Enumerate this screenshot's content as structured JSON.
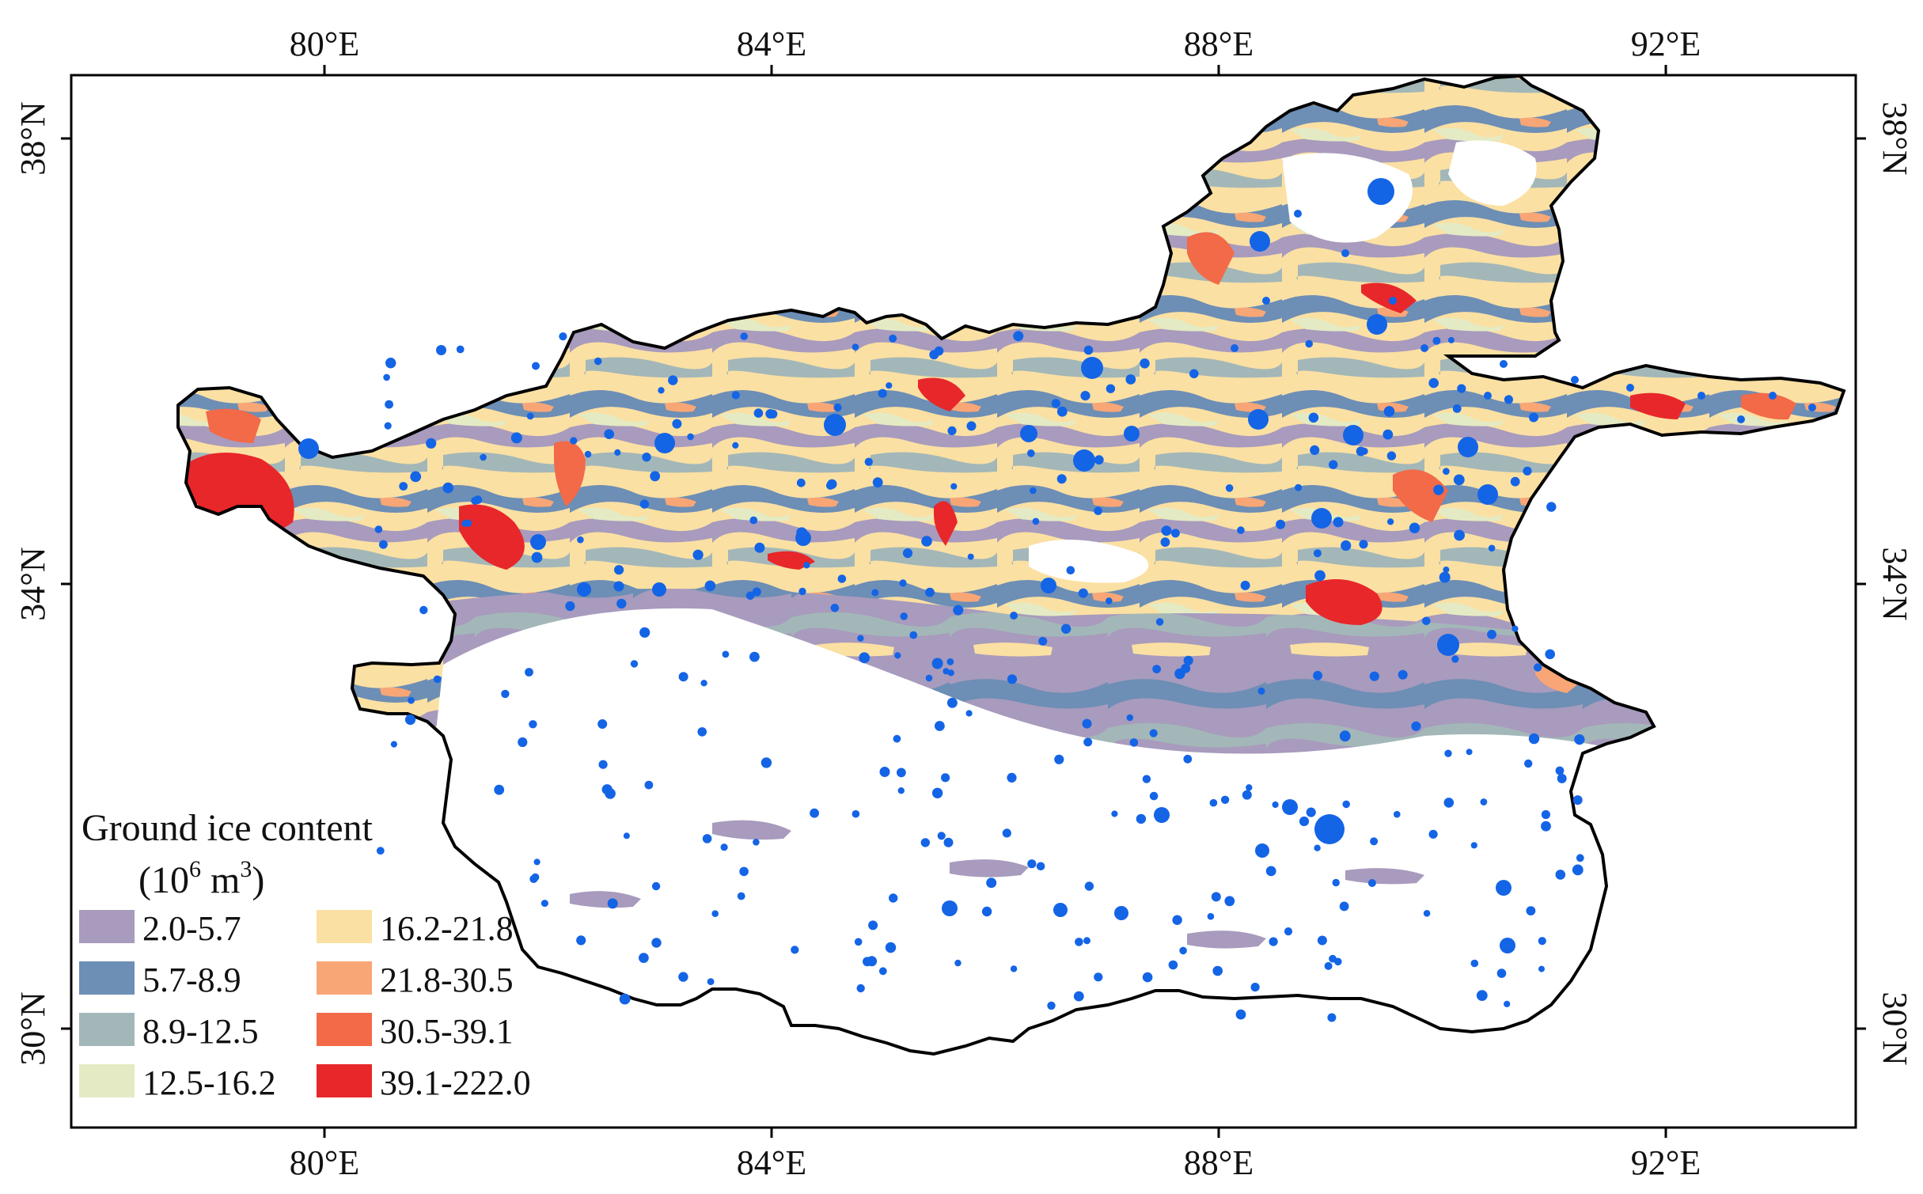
{
  "map": {
    "longitude_ticks": [
      "80°E",
      "84°E",
      "88°E",
      "92°E"
    ],
    "latitude_ticks": [
      "38°N",
      "34°N",
      "30°N"
    ],
    "legend": {
      "title": "Ground ice content",
      "unit_base": "(10",
      "unit_exp": "6",
      "unit_mid": " m",
      "unit_exp2": "3",
      "unit_close": ")",
      "classes": [
        {
          "label": "2.0-5.7",
          "color": "#a89bbd"
        },
        {
          "label": "5.7-8.9",
          "color": "#6d8eb5"
        },
        {
          "label": "8.9-12.5",
          "color": "#a3b7b8"
        },
        {
          "label": "12.5-16.2",
          "color": "#e4ebc4"
        },
        {
          "label": "16.2-21.8",
          "color": "#fbe0a3"
        },
        {
          "label": "21.8-30.5",
          "color": "#f8a676"
        },
        {
          "label": "30.5-39.1",
          "color": "#f26a48"
        },
        {
          "label": "39.1-222.0",
          "color": "#e8272a"
        }
      ]
    },
    "colors": {
      "boundary": "#000000",
      "points": "#1464e6",
      "frame": "#000000"
    }
  }
}
